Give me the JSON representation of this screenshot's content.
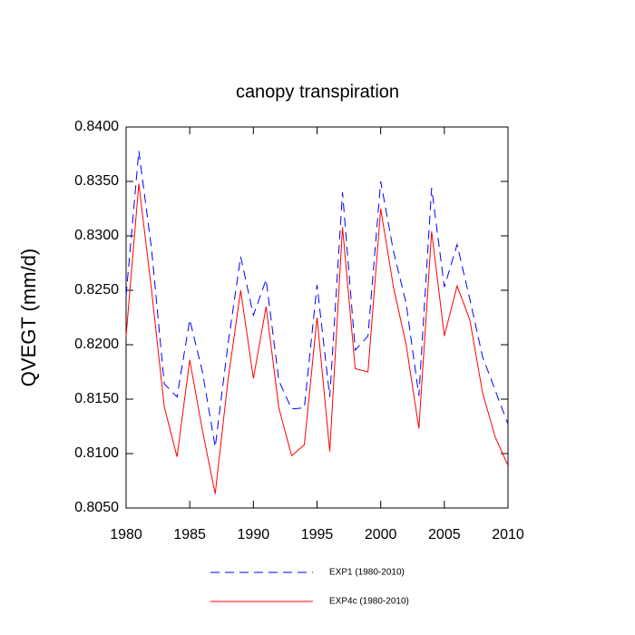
{
  "chart_data": {
    "type": "line",
    "title": "canopy transpiration",
    "y_label": "QVEGT  (mm/d)",
    "x": [
      1980,
      1981,
      1982,
      1983,
      1984,
      1985,
      1986,
      1987,
      1988,
      1989,
      1990,
      1991,
      1992,
      1993,
      1994,
      1995,
      1996,
      1997,
      1998,
      1999,
      2000,
      2001,
      2002,
      2003,
      2004,
      2005,
      2006,
      2007,
      2008,
      2009,
      2010
    ],
    "series": [
      {
        "name": "EXP1 (1980-2010)",
        "color": "#0000ff",
        "dash": "dashed",
        "values": [
          0.8245,
          0.8378,
          0.8288,
          0.8164,
          0.8152,
          0.8223,
          0.8175,
          0.8106,
          0.82,
          0.8281,
          0.8227,
          0.826,
          0.8167,
          0.8141,
          0.8142,
          0.8255,
          0.8152,
          0.834,
          0.8195,
          0.8208,
          0.835,
          0.8286,
          0.8238,
          0.8153,
          0.8344,
          0.8253,
          0.8292,
          0.8242,
          0.8189,
          0.8158,
          0.8127
        ]
      },
      {
        "name": "EXP4c (1980-2010)",
        "color": "#ff0000",
        "dash": "solid",
        "values": [
          0.8208,
          0.8348,
          0.825,
          0.8143,
          0.8097,
          0.8186,
          0.8121,
          0.8063,
          0.8167,
          0.825,
          0.8169,
          0.8235,
          0.8142,
          0.8098,
          0.8108,
          0.8225,
          0.8102,
          0.8308,
          0.8178,
          0.8175,
          0.8325,
          0.8253,
          0.82,
          0.8123,
          0.8304,
          0.8208,
          0.8254,
          0.8223,
          0.8156,
          0.8115,
          0.8089
        ]
      }
    ],
    "xlim": [
      1980,
      2010
    ],
    "xticks": [
      1980,
      1985,
      1990,
      1995,
      2000,
      2005,
      2010
    ],
    "ylim": [
      0.805,
      0.84
    ],
    "yticks": [
      {
        "value": 0.805,
        "label": "0.8050"
      },
      {
        "value": 0.81,
        "label": "0.8100"
      },
      {
        "value": 0.815,
        "label": "0.8150"
      },
      {
        "value": 0.82,
        "label": "0.8200"
      },
      {
        "value": 0.825,
        "label": "0.8250"
      },
      {
        "value": 0.83,
        "label": "0.8300"
      },
      {
        "value": 0.835,
        "label": "0.8350"
      },
      {
        "value": 0.84,
        "label": "0.8400"
      }
    ],
    "grid": false,
    "legend": "bottom"
  }
}
